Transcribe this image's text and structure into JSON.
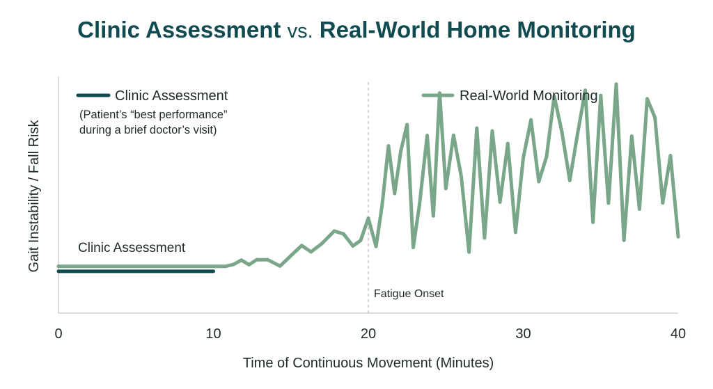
{
  "title": {
    "left": "Clinic Assessment",
    "vs": "vs.",
    "right": "Real-World Home Monitoring"
  },
  "colors": {
    "title": "#0f4b50",
    "clinic": "#0f4b50",
    "realworld": "#7aa68a",
    "axis": "#cfcfcf",
    "divider": "#b5b5b5"
  },
  "chart_data": {
    "type": "line",
    "xlabel": "Time of Continuous Movement (Minutes)",
    "ylabel": "Gait Instability / Fall Risk",
    "xlim": [
      0,
      40
    ],
    "ylim": [
      0,
      100
    ],
    "x_ticks": [
      0,
      10,
      20,
      30,
      40
    ],
    "y_ticks_shown": false,
    "grid": false,
    "legend": [
      {
        "name": "Clinic Assessment",
        "note": "(Patient’s “best performance”\nduring a brief doctor’s visit)",
        "position": "top-left"
      },
      {
        "name": "Real-World Monitoring",
        "position": "top-right"
      }
    ],
    "series": [
      {
        "name": "Clinic Assessment",
        "x": [
          0,
          10
        ],
        "y": [
          17.7,
          17.7
        ],
        "label": "Clinic Assessment"
      },
      {
        "name": "Real-World Monitoring",
        "x": [
          0,
          10.8,
          11.3,
          11.8,
          12.3,
          12.8,
          13.5,
          14.3,
          15,
          15.7,
          16.3,
          17,
          17.8,
          18.4,
          19,
          19.5,
          20,
          20.5,
          20.9,
          21.3,
          21.7,
          22.1,
          22.5,
          22.9,
          23.3,
          23.8,
          24.2,
          24.6,
          25,
          25.5,
          26,
          26.5,
          27,
          27.5,
          28,
          28.5,
          29,
          29.5,
          30,
          30.5,
          31,
          31.5,
          32,
          32.5,
          33,
          33.5,
          34,
          34.5,
          35,
          35.5,
          36,
          36.5,
          37,
          37.5,
          38,
          38.5,
          39,
          39.5,
          40
        ],
        "y": [
          19.8,
          19.8,
          20.6,
          22.4,
          20.5,
          22.6,
          22.6,
          19.9,
          24.3,
          28.6,
          25.9,
          29.4,
          34.7,
          33.5,
          28.4,
          30.7,
          40.1,
          28.2,
          46.1,
          70.7,
          50.6,
          68.6,
          79.7,
          27.8,
          45.7,
          75.1,
          41.1,
          93.0,
          52.7,
          75.2,
          57.7,
          25.8,
          78.2,
          31.8,
          77.0,
          46.9,
          71.7,
          34.2,
          65.6,
          81.7,
          55.6,
          66.1,
          91.7,
          76.4,
          56.1,
          75.6,
          94.2,
          38.4,
          92.0,
          46.5,
          96.8,
          30.8,
          74.8,
          44.0,
          90.6,
          82.7,
          46.6,
          66.6,
          32.3
        ],
        "annotation": {
          "x": 20,
          "text": "Fatigue Onset",
          "style": "dashed-vertical"
        }
      }
    ]
  }
}
